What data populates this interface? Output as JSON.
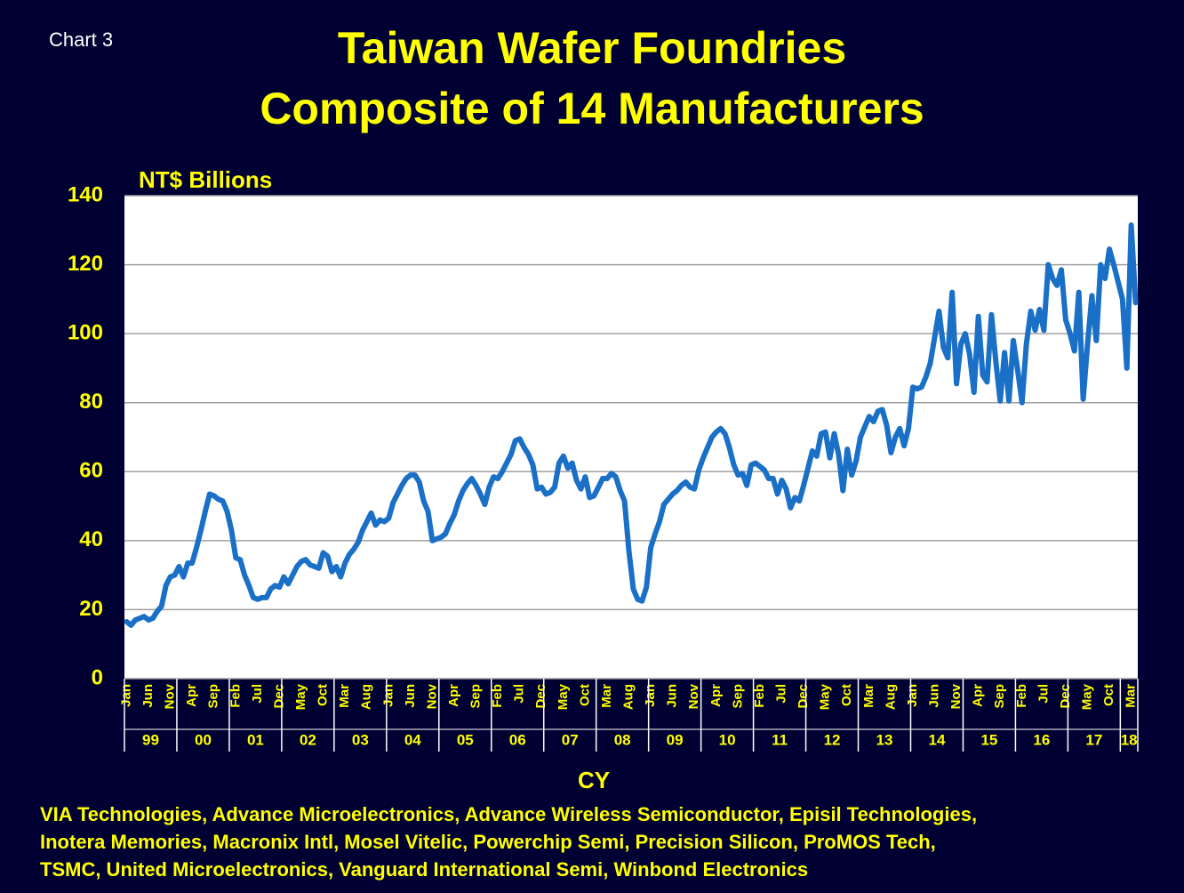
{
  "chart_label": "Chart 3",
  "chart_data": {
    "type": "line",
    "title": [
      "Taiwan Wafer Foundries",
      "Composite of 14 Manufacturers"
    ],
    "y_axis_label": "NT$ Billions",
    "x_axis_label": "CY",
    "color": "#1a6fc6",
    "grid": true,
    "ylim": [
      0,
      140
    ],
    "yticks": [
      0,
      20,
      40,
      60,
      80,
      100,
      120,
      140
    ],
    "years": [
      "99",
      "00",
      "01",
      "02",
      "03",
      "04",
      "05",
      "06",
      "07",
      "08",
      "09",
      "10",
      "11",
      "12",
      "13",
      "14",
      "15",
      "16",
      "17",
      "18"
    ],
    "categories": [
      "Jan",
      null,
      null,
      null,
      null,
      "Jun",
      null,
      null,
      null,
      null,
      "Nov",
      null,
      null,
      null,
      null,
      "Apr",
      null,
      null,
      null,
      null,
      "Sep",
      null,
      null,
      null,
      null,
      "Feb",
      null,
      null,
      null,
      null,
      "Jul",
      null,
      null,
      null,
      null,
      "Dec",
      null,
      null,
      null,
      null,
      "May",
      null,
      null,
      null,
      null,
      "Oct",
      null,
      null,
      null,
      null,
      "Mar",
      null,
      null,
      null,
      null,
      "Aug",
      null,
      null,
      null,
      null,
      "Jan",
      null,
      null,
      null,
      null,
      "Jun",
      null,
      null,
      null,
      null,
      "Nov",
      null,
      null,
      null,
      null,
      "Apr",
      null,
      null,
      null,
      null,
      "Sep",
      null,
      null,
      null,
      null,
      "Feb",
      null,
      null,
      null,
      null,
      "Jul",
      null,
      null,
      null,
      null,
      "Dec",
      null,
      null,
      null,
      null,
      "May",
      null,
      null,
      null,
      null,
      "Oct",
      null,
      null,
      null,
      null,
      "Mar",
      null,
      null,
      null,
      null,
      "Aug",
      null,
      null,
      null,
      null,
      "Jan",
      null,
      null,
      null,
      null,
      "Jun",
      null,
      null,
      null,
      null,
      "Nov",
      null,
      null,
      null,
      null,
      "Apr",
      null,
      null,
      null,
      null,
      "Sep",
      null,
      null,
      null,
      null,
      "Feb",
      null,
      null,
      null,
      null,
      "Jul",
      null,
      null,
      null,
      null,
      "Dec",
      null,
      null,
      null,
      null,
      "May",
      null,
      null,
      null,
      null,
      "Oct",
      null,
      null,
      null,
      null,
      "Mar",
      null,
      null,
      null,
      null,
      "Aug",
      null,
      null,
      null,
      null,
      "Jan",
      null,
      null,
      null,
      null,
      "Jun",
      null,
      null,
      null,
      null,
      "Nov",
      null,
      null,
      null,
      null,
      "Apr",
      null,
      null,
      null,
      null,
      "Sep",
      null,
      null,
      null,
      null,
      "Feb",
      null,
      null,
      null,
      null,
      "Jul",
      null,
      null,
      null,
      null,
      "Dec",
      null,
      null,
      null,
      null,
      "May",
      null,
      null,
      null,
      null,
      "Oct",
      null,
      null,
      null,
      null,
      "Mar",
      null
    ],
    "values": [
      16.5,
      15.5,
      17,
      17.5,
      18,
      17,
      17.5,
      19.5,
      21,
      27,
      29.5,
      30,
      32.5,
      29.5,
      33.5,
      33.5,
      38,
      43,
      48.5,
      53.5,
      53,
      52,
      51.5,
      48.5,
      43,
      35,
      34.5,
      30,
      27,
      23.5,
      23,
      23.5,
      23.5,
      26,
      27,
      26.5,
      29.5,
      27.5,
      30,
      32.5,
      34,
      34.5,
      33,
      32.5,
      32,
      36.5,
      35.5,
      31,
      32.5,
      29.5,
      33.5,
      36,
      37.5,
      39.5,
      43,
      45.5,
      48,
      44.5,
      46,
      45.5,
      46.5,
      51,
      53.5,
      56,
      58,
      59,
      59,
      57,
      51.5,
      48.5,
      40,
      40.5,
      41,
      42,
      45,
      47.5,
      51.5,
      54.5,
      56.5,
      58,
      56,
      53.5,
      50.5,
      55.5,
      58.5,
      58,
      60,
      62.5,
      65,
      69,
      69.5,
      67,
      65,
      62,
      55,
      55.5,
      53.5,
      54,
      55.5,
      62.5,
      64.5,
      61,
      62.5,
      57.5,
      55,
      58.5,
      52.5,
      53,
      55.5,
      58,
      58,
      59.5,
      58.5,
      54.5,
      51.5,
      37,
      26,
      23,
      22.5,
      26.5,
      38,
      42,
      45.5,
      50.5,
      52,
      53.5,
      54.5,
      56,
      57,
      55.5,
      55,
      60.5,
      64,
      67,
      70,
      71.5,
      72.5,
      71,
      67,
      62,
      59,
      59.5,
      56,
      62,
      62.5,
      61.5,
      60.5,
      58,
      58,
      53.5,
      57.5,
      55,
      49.5,
      52.5,
      51.5,
      56,
      61,
      66,
      64.5,
      71,
      71.5,
      64,
      71,
      65,
      54.5,
      66.5,
      59,
      63,
      70,
      73,
      76,
      74.5,
      77.5,
      78,
      73.5,
      65.5,
      70,
      72.5,
      67.5,
      72.5,
      84.5,
      84,
      84.5,
      87.5,
      91.5,
      99,
      106.5,
      96,
      93,
      112,
      85.5,
      97,
      100,
      94,
      83,
      105,
      88,
      86,
      105.5,
      92,
      80.5,
      94.5,
      80.5,
      98,
      89.5,
      80,
      97,
      106.5,
      101,
      107,
      101,
      120,
      116,
      114,
      118.5,
      104,
      100,
      95,
      112,
      81,
      97,
      111,
      98,
      120,
      116,
      124.5,
      120,
      115,
      110,
      90,
      131.5,
      109
    ]
  },
  "footer": [
    "VIA Technologies, Advance Microelectronics, Advance Wireless Semiconductor, Episil Technologies,",
    "Inotera Memories, Macronix Intl, Mosel Vitelic, Powerchip Semi, Precision Silicon, ProMOS Tech,",
    "TSMC, United Microelectronics, Vanguard International Semi, Winbond Electronics"
  ]
}
